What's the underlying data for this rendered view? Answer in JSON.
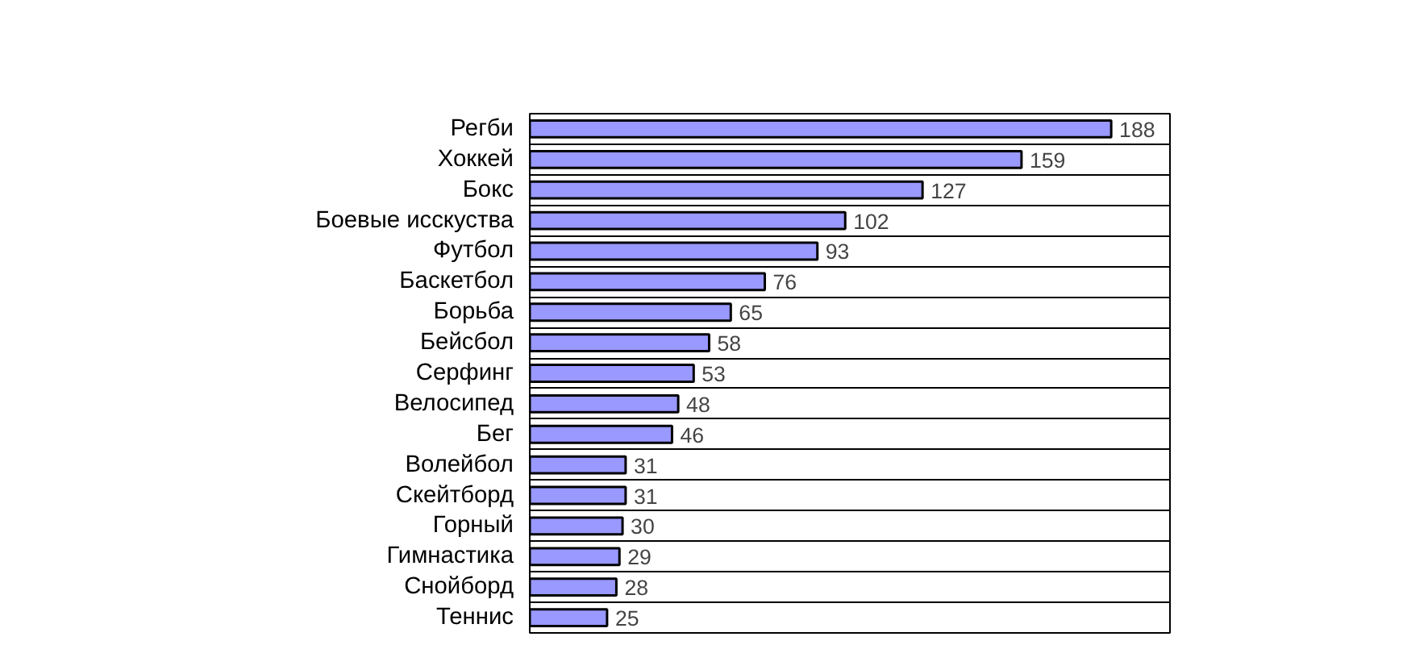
{
  "chart_data": {
    "type": "bar",
    "orientation": "horizontal",
    "categories": [
      "Регби",
      "Хоккей",
      "Бокс",
      "Боевые исскуства",
      "Футбол",
      "Баскетбол",
      "Борьба",
      "Бейсбол",
      "Серфинг",
      "Велосипед",
      "Бег",
      "Волейбол",
      "Скейтборд",
      "Горный",
      "Гимнастика",
      "Снойборд",
      "Теннис"
    ],
    "values": [
      188,
      159,
      127,
      102,
      93,
      76,
      65,
      58,
      53,
      48,
      46,
      31,
      31,
      30,
      29,
      28,
      25
    ],
    "color": "#9999ff",
    "xlim": [
      0,
      207
    ],
    "data_labels": true,
    "grid": "y",
    "tick_labels": "y"
  }
}
